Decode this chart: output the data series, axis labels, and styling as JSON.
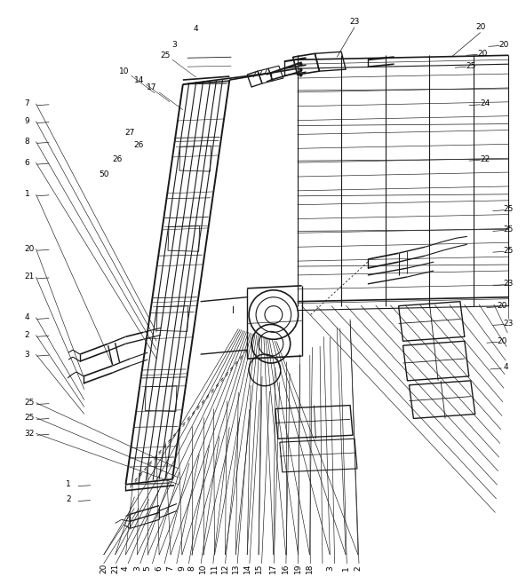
{
  "bg_color": "#ffffff",
  "line_color": "#1a1a1a",
  "fig_width": 5.92,
  "fig_height": 6.5,
  "dpi": 100
}
